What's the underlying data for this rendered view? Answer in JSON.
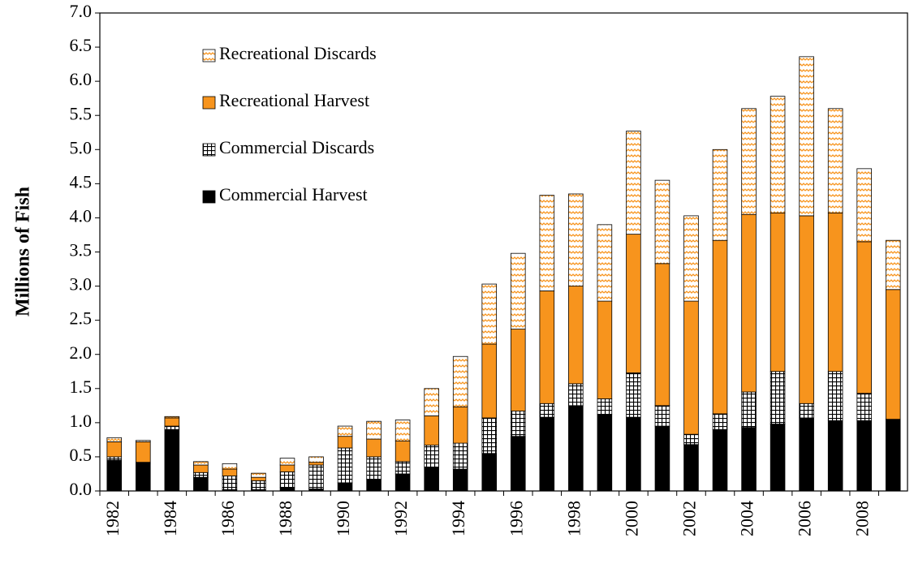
{
  "chart_data": {
    "type": "stacked_bar",
    "y_label": "Millions of Fish",
    "categories": [
      "1982",
      null,
      "1984",
      null,
      "1986",
      null,
      "1988",
      null,
      "1990",
      null,
      "1992",
      null,
      "1994",
      null,
      "1996",
      null,
      "1998",
      null,
      "2000",
      null,
      "2002",
      null,
      "2004",
      null,
      "2006",
      null,
      "2008",
      null
    ],
    "series": [
      {
        "name": "Commercial Harvest",
        "color": "#000000",
        "pattern": "solid",
        "values": [
          0.45,
          0.4,
          0.9,
          0.2,
          0.02,
          0.02,
          0.05,
          0.03,
          0.12,
          0.17,
          0.25,
          0.35,
          0.32,
          0.55,
          0.8,
          1.08,
          1.25,
          1.12,
          1.08,
          0.95,
          0.68,
          0.9,
          0.93,
          0.98,
          1.07,
          1.03,
          1.03,
          1.05
        ]
      },
      {
        "name": "Commercial Discards",
        "color": "#000000",
        "pattern": "grid",
        "values": [
          0.05,
          0.02,
          0.05,
          0.07,
          0.2,
          0.13,
          0.23,
          0.35,
          0.51,
          0.33,
          0.18,
          0.32,
          0.38,
          0.52,
          0.37,
          0.2,
          0.32,
          0.23,
          0.65,
          0.3,
          0.15,
          0.23,
          0.52,
          0.77,
          0.21,
          0.72,
          0.4,
          0
        ]
      },
      {
        "name": "Recreational Harvest",
        "color": "#f7941d",
        "pattern": "solid",
        "values": [
          0.22,
          0.3,
          0.12,
          0.11,
          0.1,
          0.05,
          0.1,
          0.04,
          0.17,
          0.26,
          0.3,
          0.43,
          0.53,
          1.08,
          1.2,
          1.65,
          1.43,
          1.43,
          2.03,
          2.08,
          1.95,
          2.54,
          2.6,
          2.32,
          2.75,
          2.32,
          2.22,
          1.9
        ]
      },
      {
        "name": "Recreational Discards",
        "color": "#f7941d",
        "pattern": "zigzag",
        "values": [
          0.06,
          0.02,
          0.02,
          0.05,
          0.08,
          0.06,
          0.1,
          0.08,
          0.15,
          0.26,
          0.31,
          0.4,
          0.74,
          0.88,
          1.11,
          1.4,
          1.35,
          1.12,
          1.51,
          1.22,
          1.25,
          1.33,
          1.55,
          1.71,
          2.33,
          1.53,
          1.07,
          0.72
        ]
      }
    ],
    "ylim": [
      0,
      7
    ],
    "yticks": [
      {
        "value": 0,
        "label": "0.0"
      },
      0.5,
      {
        "value": 1,
        "label": "1.0"
      },
      1.5,
      {
        "value": 2,
        "label": "2.0"
      },
      2.5,
      {
        "value": 3,
        "label": "3.0"
      },
      3.5,
      {
        "value": 4,
        "label": "4.0"
      },
      4.5,
      {
        "value": 5,
        "label": "5.0"
      },
      5.5,
      {
        "value": 6,
        "label": "6.0"
      },
      6.5,
      {
        "value": 7,
        "label": "7.0"
      }
    ],
    "legend": "upper left",
    "grid": false
  }
}
